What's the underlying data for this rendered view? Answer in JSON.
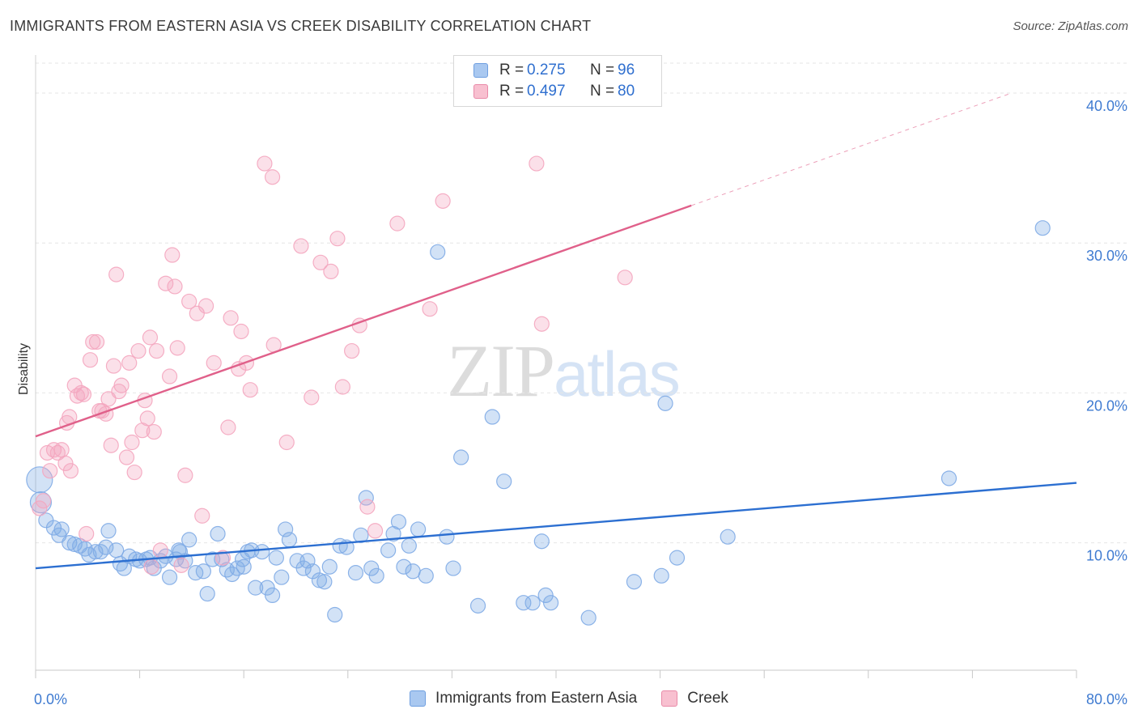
{
  "header": {
    "title": "IMMIGRANTS FROM EASTERN ASIA VS CREEK DISABILITY CORRELATION CHART",
    "source": "Source: ZipAtlas.com"
  },
  "watermark": {
    "zip": "ZIP",
    "atlas": "atlas"
  },
  "legend": {
    "rows": [
      {
        "r_label": "R =",
        "r_value": "0.275",
        "n_label": "N =",
        "n_value": "96",
        "color": "#a9c8f0",
        "border": "#6f9fe0"
      },
      {
        "r_label": "R =",
        "r_value": "0.497",
        "n_label": "N =",
        "n_value": "80",
        "color": "#f8c0d0",
        "border": "#e98aa8"
      }
    ]
  },
  "bottom_legend": {
    "items": [
      {
        "label": "Immigrants from Eastern Asia",
        "color": "#a9c8f0",
        "border": "#6f9fe0"
      },
      {
        "label": "Creek",
        "color": "#f8c0d0",
        "border": "#e98aa8"
      }
    ]
  },
  "chart_data": {
    "type": "scatter",
    "title": "IMMIGRANTS FROM EASTERN ASIA VS CREEK DISABILITY CORRELATION CHART",
    "xlabel": "",
    "ylabel": "Disability",
    "xlim": [
      0,
      80
    ],
    "ylim": [
      1.5,
      42
    ],
    "x_tick_labels": [
      {
        "value": 0,
        "label": "0.0%"
      },
      {
        "value": 80,
        "label": "80.0%"
      }
    ],
    "y_tick_labels": [
      {
        "value": 10,
        "label": "10.0%"
      },
      {
        "value": 20,
        "label": "20.0%"
      },
      {
        "value": 30,
        "label": "30.0%"
      },
      {
        "value": 40,
        "label": "40.0%"
      }
    ],
    "grid": true,
    "legend_position": "top-center",
    "series": [
      {
        "name": "Immigrants from Eastern Asia",
        "color": "#7fabe6",
        "trend": {
          "x": [
            0,
            80
          ],
          "y": [
            8.3,
            14.0
          ],
          "color": "#2c6fd1"
        },
        "points": [
          [
            0.3,
            14.2
          ],
          [
            0.4,
            12.7
          ],
          [
            0.8,
            11.5
          ],
          [
            1.4,
            11.0
          ],
          [
            2.0,
            10.9
          ],
          [
            1.8,
            10.5
          ],
          [
            2.6,
            10.0
          ],
          [
            3.0,
            9.9
          ],
          [
            3.4,
            9.8
          ],
          [
            3.8,
            9.6
          ],
          [
            4.1,
            9.2
          ],
          [
            4.6,
            9.4
          ],
          [
            5.0,
            9.4
          ],
          [
            5.4,
            9.7
          ],
          [
            5.6,
            10.8
          ],
          [
            6.2,
            9.5
          ],
          [
            6.5,
            8.6
          ],
          [
            6.8,
            8.3
          ],
          [
            7.2,
            9.1
          ],
          [
            7.7,
            8.9
          ],
          [
            8.0,
            8.8
          ],
          [
            8.5,
            8.9
          ],
          [
            8.8,
            9.0
          ],
          [
            9.1,
            8.3
          ],
          [
            9.6,
            8.8
          ],
          [
            10.0,
            9.1
          ],
          [
            10.3,
            7.7
          ],
          [
            10.8,
            8.9
          ],
          [
            11.1,
            9.4
          ],
          [
            11.5,
            8.8
          ],
          [
            11.8,
            10.2
          ],
          [
            12.3,
            8.0
          ],
          [
            12.9,
            8.1
          ],
          [
            13.2,
            6.6
          ],
          [
            13.6,
            8.9
          ],
          [
            14.0,
            10.6
          ],
          [
            14.3,
            8.9
          ],
          [
            14.7,
            8.2
          ],
          [
            15.1,
            7.9
          ],
          [
            15.5,
            8.3
          ],
          [
            15.9,
            8.9
          ],
          [
            16.3,
            9.4
          ],
          [
            16.6,
            9.5
          ],
          [
            16.9,
            7.0
          ],
          [
            17.4,
            9.4
          ],
          [
            17.8,
            7.0
          ],
          [
            18.2,
            6.5
          ],
          [
            18.5,
            9.0
          ],
          [
            18.9,
            7.7
          ],
          [
            19.2,
            10.9
          ],
          [
            19.5,
            10.2
          ],
          [
            20.1,
            8.8
          ],
          [
            20.6,
            8.3
          ],
          [
            20.9,
            8.8
          ],
          [
            21.3,
            8.1
          ],
          [
            21.8,
            7.5
          ],
          [
            22.2,
            7.4
          ],
          [
            22.6,
            8.4
          ],
          [
            23.0,
            5.2
          ],
          [
            23.4,
            9.8
          ],
          [
            23.9,
            9.7
          ],
          [
            24.6,
            8.0
          ],
          [
            25.0,
            10.5
          ],
          [
            25.4,
            13.0
          ],
          [
            25.8,
            8.3
          ],
          [
            26.2,
            7.8
          ],
          [
            27.1,
            9.5
          ],
          [
            27.5,
            10.6
          ],
          [
            27.9,
            11.4
          ],
          [
            28.3,
            8.4
          ],
          [
            28.7,
            9.8
          ],
          [
            29.0,
            8.1
          ],
          [
            29.4,
            10.9
          ],
          [
            30.0,
            7.8
          ],
          [
            30.9,
            29.4
          ],
          [
            31.6,
            10.4
          ],
          [
            32.1,
            8.3
          ],
          [
            32.7,
            15.7
          ],
          [
            34.0,
            5.8
          ],
          [
            35.1,
            18.4
          ],
          [
            36.0,
            14.1
          ],
          [
            37.5,
            6.0
          ],
          [
            38.2,
            6.0
          ],
          [
            38.9,
            10.1
          ],
          [
            39.2,
            6.5
          ],
          [
            39.6,
            6.0
          ],
          [
            42.5,
            5.0
          ],
          [
            46.0,
            7.4
          ],
          [
            48.1,
            7.8
          ],
          [
            48.4,
            19.3
          ],
          [
            49.3,
            9.0
          ],
          [
            53.2,
            10.4
          ],
          [
            70.2,
            14.3
          ],
          [
            77.4,
            31.0
          ],
          [
            11.0,
            9.5
          ],
          [
            16.0,
            8.4
          ]
        ]
      },
      {
        "name": "Creek",
        "color": "#f4a6bf",
        "trend": {
          "x": [
            0,
            50.4
          ],
          "y": [
            17.1,
            32.5
          ],
          "color": "#e0608a",
          "dashed_extension": {
            "x": [
              50.4,
              75
            ],
            "y": [
              32.5,
              40
            ]
          }
        },
        "points": [
          [
            0.3,
            12.3
          ],
          [
            0.6,
            12.8
          ],
          [
            0.9,
            16.0
          ],
          [
            1.1,
            14.8
          ],
          [
            1.4,
            16.2
          ],
          [
            1.7,
            16.0
          ],
          [
            2.0,
            16.2
          ],
          [
            2.3,
            15.3
          ],
          [
            2.4,
            18.0
          ],
          [
            2.6,
            18.4
          ],
          [
            2.7,
            14.8
          ],
          [
            3.0,
            20.5
          ],
          [
            3.2,
            19.8
          ],
          [
            3.5,
            20.0
          ],
          [
            3.7,
            19.9
          ],
          [
            3.9,
            10.6
          ],
          [
            4.2,
            22.2
          ],
          [
            4.4,
            23.4
          ],
          [
            4.7,
            23.4
          ],
          [
            4.9,
            18.8
          ],
          [
            5.1,
            18.8
          ],
          [
            5.4,
            18.6
          ],
          [
            5.6,
            19.6
          ],
          [
            5.8,
            16.5
          ],
          [
            6.0,
            21.8
          ],
          [
            6.2,
            27.9
          ],
          [
            6.4,
            20.1
          ],
          [
            6.6,
            20.5
          ],
          [
            7.0,
            15.7
          ],
          [
            7.2,
            22.0
          ],
          [
            7.4,
            16.7
          ],
          [
            7.6,
            14.7
          ],
          [
            7.9,
            22.8
          ],
          [
            8.2,
            17.5
          ],
          [
            8.4,
            19.5
          ],
          [
            8.6,
            18.3
          ],
          [
            8.8,
            23.7
          ],
          [
            9.1,
            17.4
          ],
          [
            9.3,
            22.8
          ],
          [
            9.6,
            9.5
          ],
          [
            10.0,
            27.3
          ],
          [
            10.3,
            21.1
          ],
          [
            10.5,
            29.2
          ],
          [
            10.7,
            27.1
          ],
          [
            10.9,
            23.0
          ],
          [
            11.2,
            8.5
          ],
          [
            11.5,
            14.5
          ],
          [
            11.8,
            26.1
          ],
          [
            12.4,
            25.3
          ],
          [
            12.8,
            11.8
          ],
          [
            13.1,
            25.8
          ],
          [
            13.7,
            22.0
          ],
          [
            14.4,
            9.0
          ],
          [
            14.8,
            17.7
          ],
          [
            15.0,
            25.0
          ],
          [
            15.6,
            21.6
          ],
          [
            15.8,
            24.1
          ],
          [
            16.2,
            22.0
          ],
          [
            16.5,
            20.2
          ],
          [
            18.3,
            23.2
          ],
          [
            19.3,
            16.7
          ],
          [
            17.6,
            35.3
          ],
          [
            18.2,
            34.4
          ],
          [
            20.4,
            29.8
          ],
          [
            21.2,
            19.7
          ],
          [
            21.9,
            28.7
          ],
          [
            22.7,
            28.1
          ],
          [
            23.2,
            30.3
          ],
          [
            23.6,
            20.4
          ],
          [
            24.3,
            22.8
          ],
          [
            24.9,
            24.5
          ],
          [
            25.5,
            12.4
          ],
          [
            26.1,
            10.8
          ],
          [
            27.8,
            31.3
          ],
          [
            30.3,
            25.6
          ],
          [
            31.3,
            32.8
          ],
          [
            38.5,
            35.3
          ],
          [
            38.9,
            24.6
          ],
          [
            45.3,
            27.7
          ],
          [
            8.9,
            8.4
          ]
        ]
      }
    ]
  }
}
